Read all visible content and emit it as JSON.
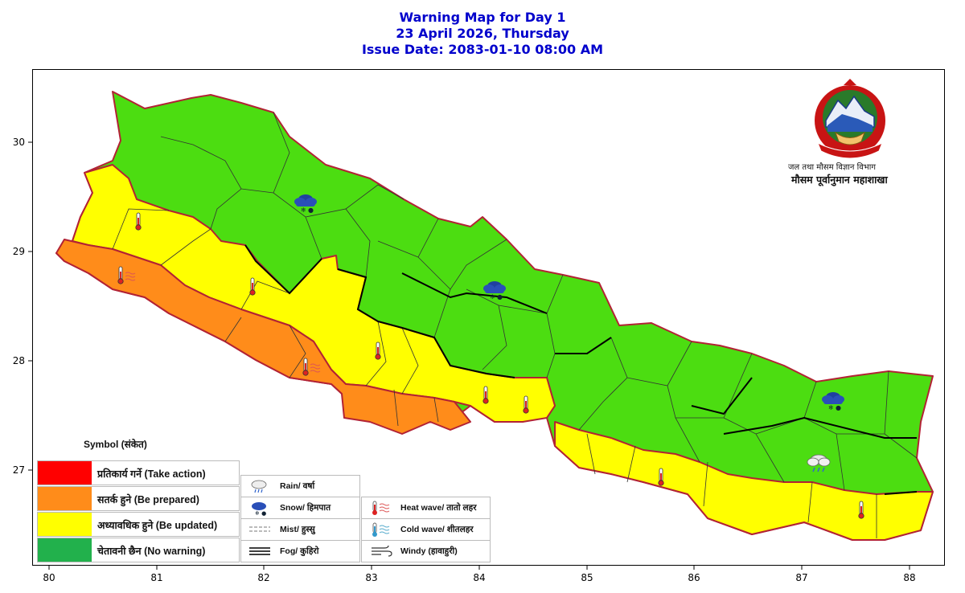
{
  "title": {
    "line1": "Warning Map for Day 1",
    "line2": "23 April 2026, Thursday",
    "line3": "Issue Date: 2083-01-10 08:00 AM"
  },
  "colors": {
    "title": "#0000cc",
    "take_action": "#ff0000",
    "be_prepared": "#ff8c1a",
    "be_updated": "#ffff00",
    "no_warning_legend": "#22b14c",
    "no_warning_map": "#4cdd11",
    "border": "#b22234"
  },
  "axes": {
    "x_ticks": [
      "80",
      "81",
      "82",
      "83",
      "84",
      "85",
      "86",
      "87",
      "88"
    ],
    "y_ticks": [
      "30",
      "29",
      "28",
      "27"
    ]
  },
  "department": {
    "line1": "जल तथा मौसम विज्ञान विभाग",
    "line2": "मौसम पूर्वानुमान महाशाखा",
    "logo": "nepal-government-emblem"
  },
  "legend": {
    "title": "Symbol (संकेत)",
    "levels": [
      {
        "label": "प्रतिकार्य गर्ने (Take action)",
        "color": "#ff0000"
      },
      {
        "label": "सतर्क हुने (Be prepared)",
        "color": "#ff8c1a"
      },
      {
        "label": "अध्यावधिक हुने (Be updated)",
        "color": "#ffff00"
      },
      {
        "label": "चेतावनी छैन (No warning)",
        "color": "#22b14c"
      }
    ]
  },
  "symbols": {
    "col1": [
      {
        "label": "Rain/ वर्षा",
        "icon": "rain-icon"
      },
      {
        "label": "Snow/ हिमपात",
        "icon": "snow-icon"
      },
      {
        "label": "Mist/ हुस्सु",
        "icon": "mist-icon"
      },
      {
        "label": "Fog/ कुहिरो",
        "icon": "fog-icon"
      }
    ],
    "col2": [
      {
        "label": "Heat wave/ तातो लहर",
        "icon": "heat-wave-icon"
      },
      {
        "label": "Cold wave/ शीतलहर",
        "icon": "cold-wave-icon"
      },
      {
        "label": "Windy (हावाहुरी)",
        "icon": "windy-icon"
      }
    ]
  },
  "map_markers": [
    {
      "type": "snow-icon"
    },
    {
      "type": "snow-icon"
    },
    {
      "type": "snow-icon"
    },
    {
      "type": "rain-icon"
    },
    {
      "type": "heat-wave-icon"
    },
    {
      "type": "heat-wave-icon"
    },
    {
      "type": "heat-wave-icon"
    },
    {
      "type": "heat-wave-icon"
    },
    {
      "type": "heat-wave-icon"
    },
    {
      "type": "heat-wave-icon"
    },
    {
      "type": "heat-wave-icon"
    },
    {
      "type": "heat-wave-icon"
    }
  ]
}
